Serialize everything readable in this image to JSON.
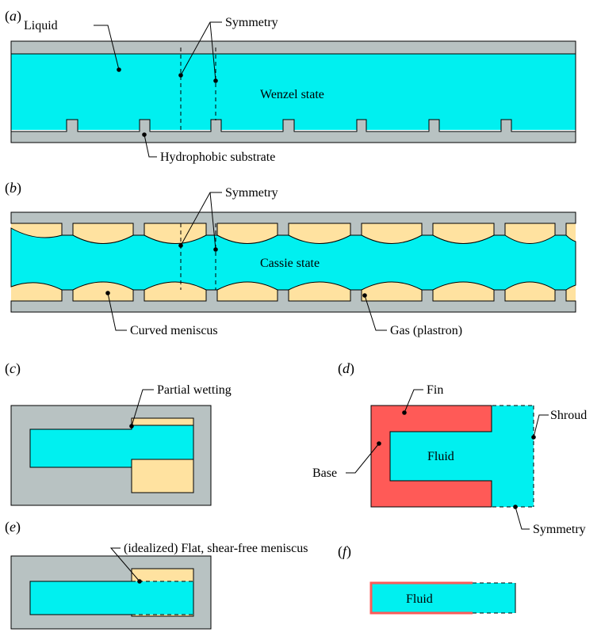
{
  "colors": {
    "liquid": "#00f0f0",
    "substrate": "#b8c2c2",
    "gas": "#ffe2a0",
    "fin": "#ff5a57"
  },
  "panels": {
    "a": {
      "letter": "a",
      "labels": {
        "liquid": "Liquid",
        "symmetry": "Symmetry",
        "state": "Wenzel state",
        "substrate": "Hydrophobic substrate"
      }
    },
    "b": {
      "letter": "b",
      "labels": {
        "symmetry": "Symmetry",
        "state": "Cassie state",
        "meniscus": "Curved meniscus",
        "gas": "Gas (plastron)"
      }
    },
    "c": {
      "letter": "c",
      "labels": {
        "partial": "Partial wetting"
      }
    },
    "d": {
      "letter": "d",
      "labels": {
        "fin": "Fin",
        "shroud": "Shroud",
        "fluid": "Fluid",
        "base": "Base",
        "symmetry": "Symmetry"
      }
    },
    "e": {
      "letter": "e",
      "labels": {
        "meniscus": "(idealized) Flat, shear-free meniscus"
      }
    },
    "f": {
      "letter": "f",
      "labels": {
        "fluid": "Fluid"
      }
    }
  }
}
